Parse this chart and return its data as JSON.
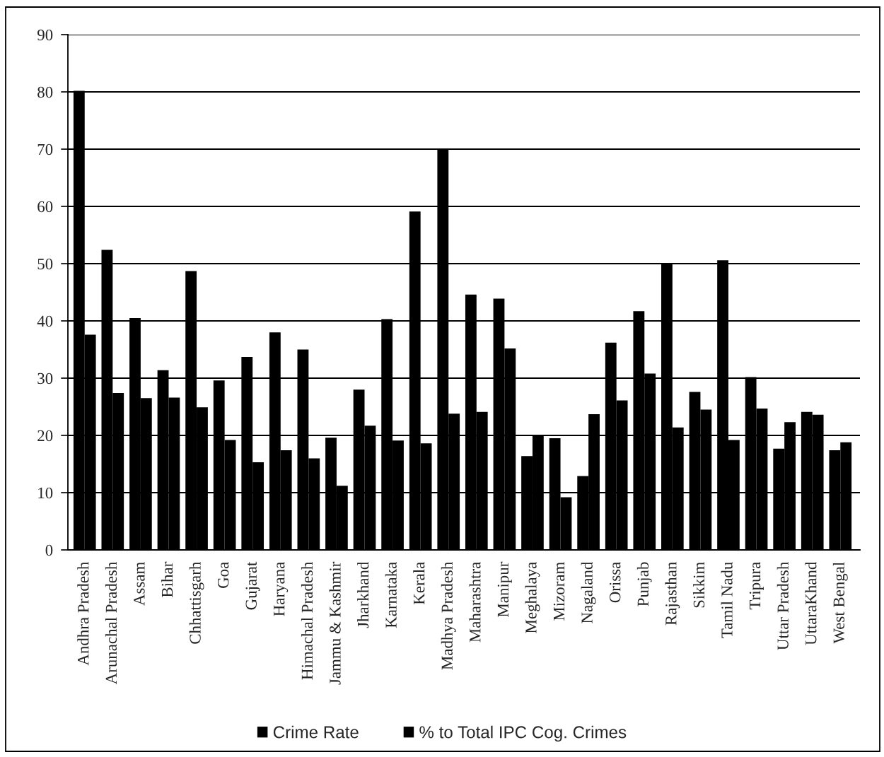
{
  "chart_data": {
    "type": "bar",
    "categories": [
      "Andhra Pradesh",
      "Arunachal Pradesh",
      "Assam",
      "Bihar",
      "Chhattisgarh",
      "Goa",
      "Gujarat",
      "Haryana",
      "Himachal Pradesh",
      "Jammu & Kashmir",
      "Jharkhand",
      "Karnataka",
      "Kerala",
      "Madhya Pradesh",
      "Maharashtra",
      "Manipur",
      "Meghalaya",
      "Mizoram",
      "Nagaland",
      "Orissa",
      "Punjab",
      "Rajasthan",
      "Sikkim",
      "Tamil Nadu",
      "Tripura",
      "Uttar Pradesh",
      "UttaraKhand",
      "West Bengal"
    ],
    "series": [
      {
        "name": "Crime Rate",
        "color": "#000000",
        "values": [
          80.2,
          52.4,
          40.5,
          31.4,
          48.7,
          29.6,
          33.7,
          38.0,
          35.0,
          19.6,
          28.0,
          40.3,
          59.1,
          70.1,
          44.6,
          43.9,
          16.4,
          19.5,
          12.9,
          36.2,
          41.7,
          50.1,
          27.6,
          50.6,
          30.2,
          17.7,
          24.1,
          17.4
        ]
      },
      {
        "name": "% to Total IPC Cog. Crimes",
        "color": "#000000",
        "values": [
          37.6,
          27.4,
          26.5,
          26.6,
          24.9,
          19.2,
          15.3,
          17.4,
          16.0,
          11.2,
          21.7,
          19.1,
          18.6,
          23.8,
          24.1,
          35.2,
          19.9,
          9.2,
          23.7,
          26.1,
          30.8,
          21.4,
          24.5,
          19.2,
          24.7,
          22.3,
          23.6,
          18.8
        ]
      }
    ],
    "ylim": [
      0,
      90
    ],
    "yticks": [
      0,
      10,
      20,
      30,
      40,
      50,
      60,
      70,
      80,
      90
    ],
    "grid": "y",
    "legend": "bottom"
  }
}
